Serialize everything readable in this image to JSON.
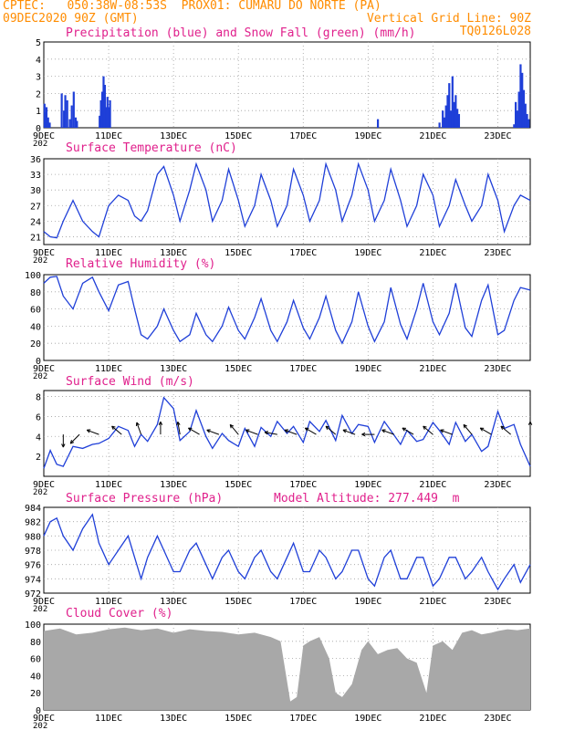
{
  "header": {
    "line1_left": "CPTEC:   050:38W-08:53S  PROX01: CUMARU DO NORTE (PA)",
    "line2_left": "09DEC2020 90Z (GMT)",
    "line2_right": "Vertical Grid Line: 90Z",
    "line3_right": "TQ0126L028"
  },
  "colors": {
    "header": "#ff8c00",
    "panel_title": "#e0208c",
    "line": "#1f3fd8",
    "snow": "#00a000",
    "cloud": "#a8a8a8",
    "grid": "#a0a0a0"
  },
  "date_ticks": [
    "9DEC",
    "11DEC",
    "13DEC",
    "15DEC",
    "17DEC",
    "19DEC",
    "21DEC",
    "23DEC"
  ],
  "year_fragment": "202",
  "chart_data": [
    {
      "id": "precip",
      "type": "bar",
      "title": "Precipitation (blue) and Snow Fall (green) (mm/h)",
      "ylim": [
        0,
        5
      ],
      "yticks": [
        "0",
        "1",
        "2",
        "3",
        "4",
        "5"
      ],
      "x_unit": "days since 9DEC",
      "series": [
        {
          "name": "Precipitation",
          "color": "#1f3fd8",
          "x": [
            0.02,
            0.05,
            0.08,
            0.1,
            0.13,
            0.18,
            0.55,
            0.62,
            0.66,
            0.72,
            0.8,
            0.86,
            0.92,
            0.98,
            1.02,
            1.72,
            1.76,
            1.8,
            1.84,
            1.88,
            1.92,
            1.96,
            2.0,
            2.04,
            10.3,
            12.2,
            12.3,
            12.35,
            12.4,
            12.45,
            12.5,
            12.55,
            12.6,
            12.65,
            12.7,
            12.75,
            12.8,
            14.5,
            14.55,
            14.6,
            14.65,
            14.7,
            14.75,
            14.8,
            14.85,
            14.9,
            14.95
          ],
          "values": [
            1.4,
            0.9,
            1.2,
            0.3,
            0.6,
            0.3,
            2.0,
            1.0,
            1.9,
            1.6,
            0.5,
            1.3,
            2.1,
            0.6,
            0.4,
            0.7,
            1.6,
            2.1,
            3.0,
            2.5,
            1.2,
            1.8,
            1.2,
            1.6,
            0.5,
            0.3,
            1.0,
            0.6,
            1.3,
            1.9,
            2.6,
            1.0,
            3.0,
            1.5,
            1.9,
            1.1,
            0.8,
            0.2,
            1.5,
            1.0,
            2.1,
            3.7,
            3.2,
            2.2,
            1.4,
            0.8,
            0.5
          ]
        },
        {
          "name": "Snow Fall",
          "color": "#00a000",
          "x": [],
          "values": []
        }
      ]
    },
    {
      "id": "temp",
      "type": "line",
      "title": "Surface Temperature (nC)",
      "ylim": [
        19.5,
        36
      ],
      "yticks": [
        "21",
        "24",
        "27",
        "30",
        "33",
        "36"
      ],
      "x": [
        0,
        0.2,
        0.4,
        0.6,
        0.9,
        1.2,
        1.5,
        1.7,
        2.0,
        2.3,
        2.6,
        2.8,
        3.0,
        3.2,
        3.5,
        3.7,
        4.0,
        4.2,
        4.5,
        4.7,
        5.0,
        5.2,
        5.5,
        5.7,
        6.0,
        6.2,
        6.5,
        6.7,
        7.0,
        7.2,
        7.5,
        7.7,
        8.0,
        8.2,
        8.5,
        8.7,
        9.0,
        9.2,
        9.5,
        9.7,
        10.0,
        10.2,
        10.5,
        10.7,
        11.0,
        11.2,
        11.5,
        11.7,
        12.0,
        12.2,
        12.5,
        12.7,
        13.0,
        13.2,
        13.5,
        13.7,
        14.0,
        14.2,
        14.5,
        14.7,
        15.0
      ],
      "values": [
        22,
        21,
        20.8,
        24,
        28,
        24,
        22,
        21,
        27,
        29,
        28,
        25,
        24,
        26,
        33,
        34.5,
        29,
        24,
        30,
        35,
        30,
        24,
        28,
        34,
        28,
        23,
        27,
        33,
        28,
        23,
        27,
        34,
        29,
        24,
        28,
        35,
        30,
        24,
        29,
        35,
        30,
        24,
        28,
        34,
        28,
        23,
        27,
        33,
        29,
        23,
        27,
        32,
        27,
        24,
        27,
        33,
        28,
        22,
        27,
        29,
        28
      ]
    },
    {
      "id": "rh",
      "type": "line",
      "title": "Relative Humidity (%)",
      "ylim": [
        0,
        100
      ],
      "yticks": [
        "0",
        "20",
        "40",
        "60",
        "80",
        "100"
      ],
      "x": [
        0,
        0.2,
        0.4,
        0.6,
        0.9,
        1.2,
        1.5,
        1.7,
        2.0,
        2.3,
        2.6,
        2.8,
        3.0,
        3.2,
        3.5,
        3.7,
        4.0,
        4.2,
        4.5,
        4.7,
        5.0,
        5.2,
        5.5,
        5.7,
        6.0,
        6.2,
        6.5,
        6.7,
        7.0,
        7.2,
        7.5,
        7.7,
        8.0,
        8.2,
        8.5,
        8.7,
        9.0,
        9.2,
        9.5,
        9.7,
        10.0,
        10.2,
        10.5,
        10.7,
        11.0,
        11.2,
        11.5,
        11.7,
        12.0,
        12.2,
        12.5,
        12.7,
        13.0,
        13.2,
        13.5,
        13.7,
        14.0,
        14.2,
        14.5,
        14.7,
        15.0
      ],
      "values": [
        90,
        97,
        98,
        75,
        60,
        90,
        97,
        80,
        58,
        88,
        92,
        60,
        30,
        25,
        40,
        60,
        35,
        22,
        30,
        55,
        30,
        22,
        40,
        62,
        35,
        25,
        50,
        72,
        35,
        22,
        45,
        70,
        38,
        25,
        50,
        75,
        35,
        20,
        45,
        80,
        40,
        22,
        45,
        85,
        42,
        25,
        60,
        90,
        45,
        30,
        55,
        90,
        38,
        28,
        70,
        88,
        30,
        35,
        70,
        85,
        82
      ]
    },
    {
      "id": "wind",
      "type": "line",
      "title": "Surface Wind (m/s)",
      "ylim": [
        0,
        8.6
      ],
      "yticks": [
        "2",
        "4",
        "6",
        "8"
      ],
      "x": [
        0,
        0.2,
        0.4,
        0.6,
        0.9,
        1.2,
        1.5,
        1.7,
        2.0,
        2.3,
        2.6,
        2.8,
        3.0,
        3.2,
        3.5,
        3.7,
        4.0,
        4.2,
        4.5,
        4.7,
        5.0,
        5.2,
        5.5,
        5.7,
        6.0,
        6.2,
        6.5,
        6.7,
        7.0,
        7.2,
        7.5,
        7.7,
        8.0,
        8.2,
        8.5,
        8.7,
        9.0,
        9.2,
        9.5,
        9.7,
        10.0,
        10.2,
        10.5,
        10.7,
        11.0,
        11.2,
        11.5,
        11.7,
        12.0,
        12.2,
        12.5,
        12.7,
        13.0,
        13.2,
        13.5,
        13.7,
        14.0,
        14.2,
        14.5,
        14.7,
        15.0
      ],
      "values": [
        0.8,
        2.6,
        1.2,
        1.0,
        3.0,
        2.8,
        3.2,
        3.3,
        3.8,
        5.0,
        4.6,
        3.0,
        4.2,
        3.5,
        5.2,
        7.9,
        6.8,
        3.6,
        4.5,
        6.6,
        4.0,
        2.8,
        4.3,
        3.6,
        3.0,
        4.8,
        3.0,
        4.9,
        4.0,
        5.5,
        4.3,
        5.0,
        3.4,
        5.5,
        4.5,
        5.6,
        3.6,
        6.1,
        4.3,
        5.2,
        5.0,
        3.4,
        5.5,
        4.6,
        3.2,
        4.6,
        3.5,
        3.7,
        5.4,
        4.6,
        3.2,
        5.4,
        3.5,
        4.2,
        2.5,
        3.0,
        6.5,
        4.8,
        5.2,
        3.2,
        1.0
      ]
    },
    {
      "id": "pres",
      "type": "line",
      "title": "Surface Pressure (hPa)",
      "annotation": "Model Altitude: 277.449  m",
      "ylim": [
        972,
        984
      ],
      "yticks": [
        "972",
        "974",
        "976",
        "978",
        "980",
        "982",
        "984"
      ],
      "x": [
        0,
        0.2,
        0.4,
        0.6,
        0.9,
        1.2,
        1.5,
        1.7,
        2.0,
        2.3,
        2.6,
        2.8,
        3.0,
        3.2,
        3.5,
        3.7,
        4.0,
        4.2,
        4.5,
        4.7,
        5.0,
        5.2,
        5.5,
        5.7,
        6.0,
        6.2,
        6.5,
        6.7,
        7.0,
        7.2,
        7.5,
        7.7,
        8.0,
        8.2,
        8.5,
        8.7,
        9.0,
        9.2,
        9.5,
        9.7,
        10.0,
        10.2,
        10.5,
        10.7,
        11.0,
        11.2,
        11.5,
        11.7,
        12.0,
        12.2,
        12.5,
        12.7,
        13.0,
        13.2,
        13.5,
        13.7,
        14.0,
        14.2,
        14.5,
        14.7,
        15.0
      ],
      "values": [
        980,
        982,
        982.5,
        980,
        978,
        981,
        983,
        979,
        976,
        978,
        980,
        977,
        974,
        977,
        980,
        978,
        975,
        975,
        978,
        979,
        976,
        974,
        977,
        978,
        975,
        974,
        977,
        978,
        975,
        974,
        977,
        979,
        975,
        975,
        978,
        977,
        974,
        975,
        978,
        978,
        974,
        973,
        977,
        978,
        974,
        974,
        977,
        977,
        973,
        974,
        977,
        977,
        974,
        975,
        977,
        975,
        972.5,
        974,
        976,
        973.5,
        976
      ]
    },
    {
      "id": "cloud",
      "type": "area",
      "title": "Cloud Cover (%)",
      "ylim": [
        0,
        100
      ],
      "yticks": [
        "0",
        "20",
        "40",
        "60",
        "80",
        "100"
      ],
      "x": [
        0,
        0.5,
        1.0,
        1.5,
        2.0,
        2.5,
        3.0,
        3.5,
        4.0,
        4.5,
        5.0,
        5.5,
        6.0,
        6.5,
        7.0,
        7.3,
        7.6,
        7.8,
        8.0,
        8.2,
        8.5,
        8.8,
        9.0,
        9.2,
        9.5,
        9.8,
        10.0,
        10.3,
        10.6,
        10.9,
        11.2,
        11.5,
        11.8,
        12.0,
        12.3,
        12.6,
        12.9,
        13.2,
        13.5,
        13.8,
        14.0,
        14.3,
        14.6,
        15.0
      ],
      "values": [
        92,
        95,
        88,
        90,
        94,
        96,
        93,
        95,
        90,
        94,
        92,
        91,
        88,
        90,
        85,
        80,
        10,
        15,
        75,
        80,
        85,
        60,
        20,
        15,
        30,
        70,
        80,
        65,
        70,
        72,
        60,
        55,
        20,
        75,
        80,
        70,
        90,
        93,
        88,
        90,
        92,
        94,
        93,
        95
      ]
    }
  ],
  "wind_barbs": {
    "x": [
      0.6,
      1.1,
      1.7,
      2.4,
      3.0,
      3.6,
      4.2,
      4.8,
      5.4,
      6.0,
      6.6,
      7.2,
      7.8,
      8.4,
      9.0,
      9.6,
      10.2,
      10.8,
      11.4,
      12.0,
      12.6,
      13.2,
      13.8,
      14.4,
      15.0
    ],
    "dir_deg": [
      90,
      135,
      200,
      220,
      250,
      270,
      260,
      210,
      200,
      230,
      200,
      190,
      200,
      210,
      220,
      200,
      180,
      200,
      210,
      220,
      200,
      230,
      210,
      220,
      270
    ]
  }
}
